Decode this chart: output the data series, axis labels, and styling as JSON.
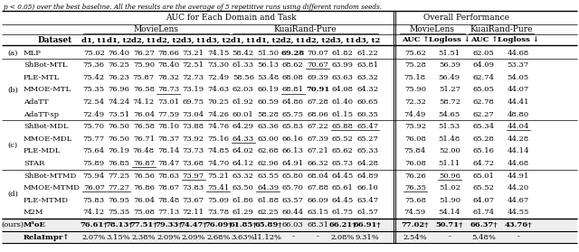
{
  "title_text": "p < 0.05) over the best baseline. All the results are the average of 5 repetitive runs using different random seeds.",
  "col_headers": [
    "d1, t1",
    "d1, t2",
    "d2, t1",
    "d2, t2",
    "d3, t1",
    "d3, t2",
    "d1, t1",
    "d1, t2",
    "d2, t1",
    "d2, t2",
    "d3, t1",
    "d3, t2",
    "AUC ↑",
    "Logloss ↓",
    "AUC ↑",
    "Logloss ↓"
  ],
  "rows": [
    {
      "group": "(a)",
      "name": "MLP",
      "vals": [
        "75.02",
        "76.40",
        "76.27",
        "78.66",
        "73.21",
        "74.15",
        "58.42",
        "51.50",
        "69.28",
        "70.07",
        "61.82",
        "61.22",
        "75.62",
        "51.51",
        "62.05",
        "44.68"
      ],
      "bold": [
        false,
        false,
        false,
        false,
        false,
        false,
        false,
        false,
        true,
        false,
        false,
        false,
        false,
        false,
        false,
        false
      ],
      "underline": [
        false,
        false,
        false,
        false,
        false,
        false,
        false,
        false,
        false,
        false,
        false,
        false,
        false,
        false,
        false,
        false
      ]
    },
    {
      "group": "(b)",
      "name": "ShBot-MTL",
      "vals": [
        "75.36",
        "76.25",
        "75.90",
        "78.40",
        "72.51",
        "73.30",
        "61.33",
        "56.13",
        "68.62",
        "70.67",
        "63.99",
        "63.81",
        "75.28",
        "56.39",
        "64.09",
        "53.37"
      ],
      "bold": [
        false,
        false,
        false,
        false,
        false,
        false,
        false,
        false,
        false,
        false,
        false,
        false,
        false,
        false,
        false,
        false
      ],
      "underline": [
        false,
        false,
        false,
        false,
        false,
        false,
        false,
        false,
        false,
        true,
        false,
        false,
        false,
        false,
        false,
        false
      ]
    },
    {
      "group": "(b)",
      "name": "PLE-MTL",
      "vals": [
        "75.42",
        "76.23",
        "75.87",
        "78.32",
        "72.73",
        "72.49",
        "58.56",
        "53.48",
        "68.08",
        "69.39",
        "63.63",
        "63.32",
        "75.18",
        "56.49",
        "62.74",
        "54.05"
      ],
      "bold": [
        false,
        false,
        false,
        false,
        false,
        false,
        false,
        false,
        false,
        false,
        false,
        false,
        false,
        false,
        false,
        false
      ],
      "underline": [
        false,
        false,
        false,
        false,
        false,
        false,
        false,
        false,
        false,
        false,
        false,
        false,
        false,
        false,
        false,
        false
      ]
    },
    {
      "group": "(b)",
      "name": "MMOE-MTL",
      "vals": [
        "75.35",
        "76.96",
        "76.58",
        "78.73",
        "73.19",
        "74.63",
        "62.03",
        "60.19",
        "68.81",
        "70.91",
        "64.08",
        "64.32",
        "75.90",
        "51.27",
        "65.05",
        "44.07"
      ],
      "bold": [
        false,
        false,
        false,
        false,
        false,
        false,
        false,
        false,
        false,
        true,
        false,
        false,
        false,
        false,
        false,
        false
      ],
      "underline": [
        false,
        false,
        false,
        true,
        false,
        false,
        false,
        false,
        true,
        false,
        false,
        false,
        false,
        false,
        false,
        false
      ]
    },
    {
      "group": "(b)",
      "name": "AdaTT",
      "vals": [
        "72.54",
        "74.24",
        "74.12",
        "73.01",
        "69.75",
        "70.25",
        "61.92",
        "60.59",
        "64.86",
        "67.28",
        "61.40",
        "60.65",
        "72.32",
        "58.72",
        "62.78",
        "44.41"
      ],
      "bold": [
        false,
        false,
        false,
        false,
        false,
        false,
        false,
        false,
        false,
        false,
        false,
        false,
        false,
        false,
        false,
        false
      ],
      "underline": [
        false,
        false,
        false,
        false,
        false,
        false,
        false,
        false,
        false,
        false,
        false,
        false,
        false,
        false,
        false,
        false
      ]
    },
    {
      "group": "(b)",
      "name": "AdaTT-sp",
      "vals": [
        "72.49",
        "73.51",
        "76.04",
        "77.59",
        "73.04",
        "74.26",
        "60.01",
        "58.28",
        "65.75",
        "68.06",
        "61.15",
        "60.35",
        "74.49",
        "54.65",
        "62.27",
        "48.80"
      ],
      "bold": [
        false,
        false,
        false,
        false,
        false,
        false,
        false,
        false,
        false,
        false,
        false,
        false,
        false,
        false,
        false,
        false
      ],
      "underline": [
        false,
        false,
        false,
        false,
        false,
        false,
        false,
        false,
        false,
        false,
        false,
        false,
        false,
        false,
        false,
        false
      ]
    },
    {
      "group": "(c)",
      "name": "ShBot-MDL",
      "vals": [
        "75.70",
        "76.50",
        "76.58",
        "78.10",
        "73.88",
        "74.76",
        "64.29",
        "63.36",
        "65.83",
        "67.22",
        "65.88",
        "65.47",
        "75.92",
        "51.53",
        "65.34",
        "44.04"
      ],
      "bold": [
        false,
        false,
        false,
        false,
        false,
        false,
        false,
        false,
        false,
        false,
        false,
        false,
        false,
        false,
        false,
        false
      ],
      "underline": [
        false,
        false,
        false,
        false,
        false,
        false,
        false,
        false,
        false,
        false,
        true,
        true,
        false,
        false,
        false,
        true
      ]
    },
    {
      "group": "(c)",
      "name": "MMOE-MDL",
      "vals": [
        "75.77",
        "76.50",
        "76.71",
        "78.37",
        "73.92",
        "75.16",
        "64.33",
        "63.00",
        "66.16",
        "67.39",
        "65.52",
        "65.27",
        "76.08",
        "51.48",
        "65.28",
        "44.28"
      ],
      "bold": [
        false,
        false,
        false,
        false,
        false,
        false,
        false,
        false,
        false,
        false,
        false,
        false,
        false,
        false,
        false,
        false
      ],
      "underline": [
        false,
        false,
        false,
        false,
        false,
        false,
        true,
        false,
        false,
        false,
        false,
        false,
        false,
        false,
        false,
        false
      ]
    },
    {
      "group": "(c)",
      "name": "PLE-MDL",
      "vals": [
        "75.64",
        "76.19",
        "76.48",
        "78.14",
        "73.73",
        "74.85",
        "64.02",
        "62.68",
        "66.13",
        "67.21",
        "65.62",
        "65.33",
        "75.84",
        "52.00",
        "65.16",
        "44.14"
      ],
      "bold": [
        false,
        false,
        false,
        false,
        false,
        false,
        false,
        false,
        false,
        false,
        false,
        false,
        false,
        false,
        false,
        false
      ],
      "underline": [
        false,
        false,
        false,
        false,
        false,
        false,
        false,
        false,
        false,
        false,
        false,
        false,
        false,
        false,
        false,
        false
      ]
    },
    {
      "group": "(c)",
      "name": "STAR",
      "vals": [
        "75.89",
        "76.85",
        "76.87",
        "78.47",
        "73.68",
        "74.70",
        "64.12",
        "62.96",
        "64.91",
        "66.32",
        "65.73",
        "64.28",
        "76.08",
        "51.11",
        "64.72",
        "44.68"
      ],
      "bold": [
        false,
        false,
        false,
        false,
        false,
        false,
        false,
        false,
        false,
        false,
        false,
        false,
        false,
        false,
        false,
        false
      ],
      "underline": [
        false,
        false,
        true,
        false,
        false,
        false,
        false,
        false,
        false,
        false,
        false,
        false,
        false,
        false,
        false,
        false
      ]
    },
    {
      "group": "(d)",
      "name": "ShBot-MTMD",
      "vals": [
        "75.94",
        "77.25",
        "76.56",
        "78.63",
        "73.97",
        "75.21",
        "63.32",
        "63.55",
        "65.80",
        "68.04",
        "64.45",
        "64.89",
        "76.26",
        "50.96",
        "65.01",
        "44.91"
      ],
      "bold": [
        false,
        false,
        false,
        false,
        false,
        false,
        false,
        false,
        false,
        false,
        false,
        false,
        false,
        false,
        false,
        false
      ],
      "underline": [
        false,
        false,
        false,
        false,
        true,
        false,
        false,
        false,
        false,
        false,
        false,
        false,
        false,
        true,
        false,
        false
      ]
    },
    {
      "group": "(d)",
      "name": "MMOE-MTMD",
      "vals": [
        "76.07",
        "77.27",
        "76.86",
        "78.67",
        "73.83",
        "75.41",
        "63.50",
        "64.39",
        "65.70",
        "67.88",
        "65.61",
        "66.10",
        "76.35",
        "51.02",
        "65.52",
        "44.20"
      ],
      "bold": [
        false,
        false,
        false,
        false,
        false,
        false,
        false,
        false,
        false,
        false,
        false,
        false,
        false,
        false,
        false,
        false
      ],
      "underline": [
        true,
        true,
        false,
        false,
        false,
        true,
        false,
        true,
        false,
        false,
        false,
        false,
        true,
        false,
        false,
        false
      ]
    },
    {
      "group": "(d)",
      "name": "PLE-MTMD",
      "vals": [
        "75.83",
        "76.95",
        "76.04",
        "78.48",
        "73.67",
        "75.09",
        "61.86",
        "61.88",
        "63.57",
        "66.09",
        "64.45",
        "63.47",
        "75.68",
        "51.90",
        "64.07",
        "44.67"
      ],
      "bold": [
        false,
        false,
        false,
        false,
        false,
        false,
        false,
        false,
        false,
        false,
        false,
        false,
        false,
        false,
        false,
        false
      ],
      "underline": [
        false,
        false,
        false,
        false,
        false,
        false,
        false,
        false,
        false,
        false,
        false,
        false,
        false,
        false,
        false,
        false
      ]
    },
    {
      "group": "(d)",
      "name": "M2M",
      "vals": [
        "74.12",
        "75.35",
        "75.08",
        "77.13",
        "72.11",
        "73.78",
        "61.29",
        "62.25",
        "60.44",
        "63.15",
        "61.75",
        "61.57",
        "74.59",
        "54.14",
        "61.74",
        "44.55"
      ],
      "bold": [
        false,
        false,
        false,
        false,
        false,
        false,
        false,
        false,
        false,
        false,
        false,
        false,
        false,
        false,
        false,
        false
      ],
      "underline": [
        false,
        false,
        false,
        false,
        false,
        false,
        false,
        false,
        false,
        false,
        false,
        false,
        false,
        false,
        false,
        false
      ]
    },
    {
      "group": "(ours)",
      "name": "M³oE",
      "vals": [
        "76.61†",
        "78.13†",
        "77.51†",
        "79.33†",
        "74.47†",
        "76.09†",
        "61.85†",
        "65.89†",
        "66.03",
        "68.31",
        "66.21†",
        "66.91†",
        "77.02†",
        "50.71†",
        "66.37†",
        "43.76†"
      ],
      "bold": [
        true,
        true,
        true,
        true,
        true,
        true,
        true,
        true,
        false,
        false,
        true,
        true,
        true,
        true,
        true,
        true
      ],
      "underline": [
        false,
        false,
        false,
        false,
        false,
        false,
        false,
        false,
        false,
        false,
        false,
        false,
        false,
        false,
        false,
        false
      ]
    },
    {
      "group": "relaimpr",
      "name": "RelaImpr↑",
      "vals": [
        "2.07%",
        "3.15%",
        "2.38%",
        "2.09%",
        "2.09%",
        "2.68%",
        "3.63%",
        "11.12%",
        "-",
        "-",
        "2.08%",
        "9.31%",
        "2.54%",
        "-",
        "5.48%",
        "-"
      ],
      "bold": [
        false,
        false,
        false,
        false,
        false,
        false,
        false,
        false,
        false,
        false,
        false,
        false,
        false,
        false,
        false,
        false
      ],
      "underline": [
        false,
        false,
        false,
        false,
        false,
        false,
        false,
        false,
        false,
        false,
        false,
        false,
        false,
        false,
        false,
        false
      ]
    }
  ]
}
